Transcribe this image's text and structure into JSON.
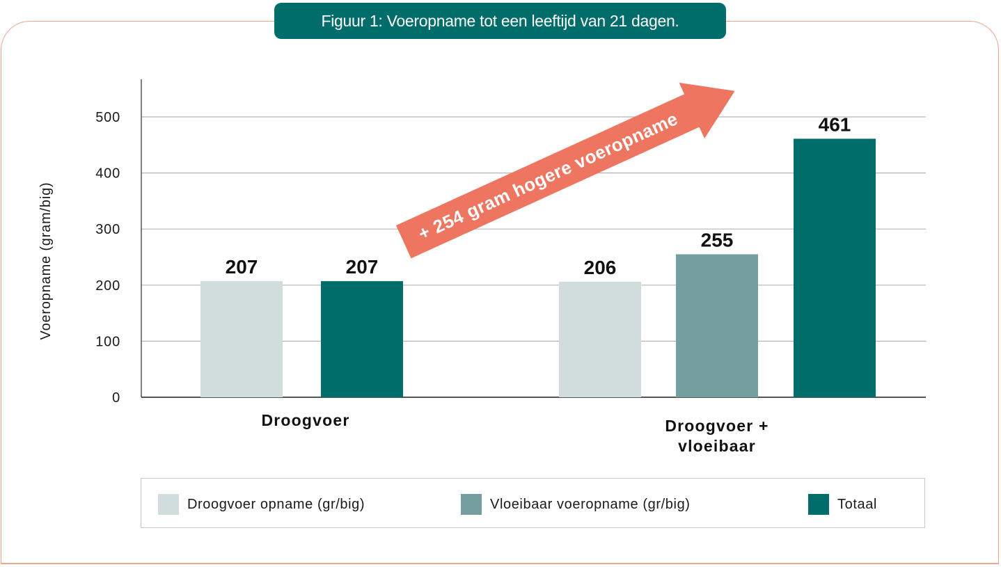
{
  "title": "Figuur 1: Voeropname tot een leeftijd van 21 dagen.",
  "chart_data": {
    "type": "bar",
    "ylabel": "Voeropname  (gram/big)",
    "xlabel": "",
    "ylim": [
      0,
      560
    ],
    "yticks": [
      0,
      100,
      200,
      300,
      400,
      500
    ],
    "grid": true,
    "legend_placement": "bottom",
    "categories": [
      "Droogvoer",
      "Droogvoer + vloeibaar"
    ],
    "category_lines": [
      [
        "Droogvoer"
      ],
      [
        "Droogvoer +",
        "vloeibaar"
      ]
    ],
    "series": [
      {
        "name": "Droogvoer opname (gr/big)",
        "color": "#d1dcdd",
        "values": [
          207,
          206
        ]
      },
      {
        "name": "Vloeibaar voeropname (gr/big)",
        "color": "#759f9f",
        "values": [
          null,
          255
        ]
      },
      {
        "name": "Totaal",
        "color": "#006d6a",
        "values": [
          207,
          461
        ]
      }
    ],
    "data_labels": [
      "207",
      "207",
      "206",
      "255",
      "461"
    ],
    "annotation": {
      "text": "+ 254 gram hogere voeropname",
      "color": "#ee7660"
    }
  }
}
